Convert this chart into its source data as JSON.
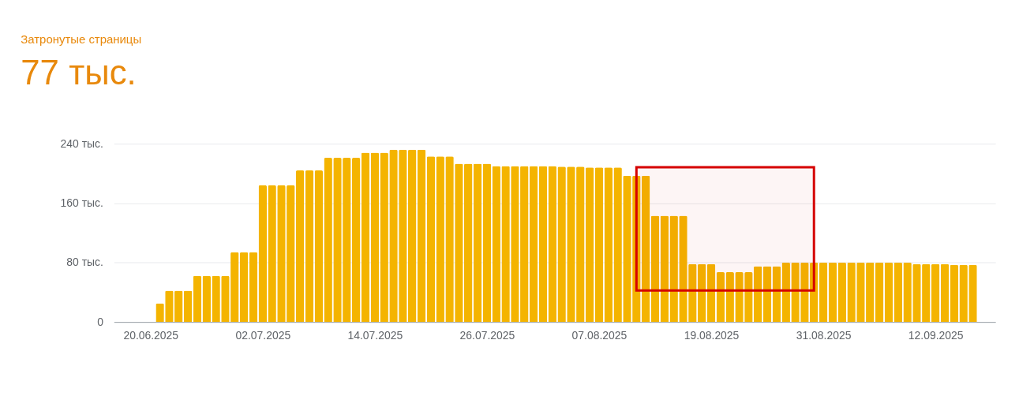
{
  "chart_data": {
    "type": "bar",
    "title": "Затронутые страницы",
    "subtitle": "77 тыс.",
    "x": [
      "2025-06-21",
      "2025-06-22",
      "2025-06-23",
      "2025-06-24",
      "2025-06-25",
      "2025-06-26",
      "2025-06-27",
      "2025-06-28",
      "2025-06-29",
      "2025-06-30",
      "2025-07-01",
      "2025-07-02",
      "2025-07-03",
      "2025-07-04",
      "2025-07-05",
      "2025-07-06",
      "2025-07-07",
      "2025-07-08",
      "2025-07-09",
      "2025-07-10",
      "2025-07-11",
      "2025-07-12",
      "2025-07-13",
      "2025-07-14",
      "2025-07-15",
      "2025-07-16",
      "2025-07-17",
      "2025-07-18",
      "2025-07-19",
      "2025-07-20",
      "2025-07-21",
      "2025-07-22",
      "2025-07-23",
      "2025-07-24",
      "2025-07-25",
      "2025-07-26",
      "2025-07-27",
      "2025-07-28",
      "2025-07-29",
      "2025-07-30",
      "2025-07-31",
      "2025-08-01",
      "2025-08-02",
      "2025-08-03",
      "2025-08-04",
      "2025-08-05",
      "2025-08-06",
      "2025-08-07",
      "2025-08-08",
      "2025-08-09",
      "2025-08-10",
      "2025-08-11",
      "2025-08-12",
      "2025-08-13",
      "2025-08-14",
      "2025-08-15",
      "2025-08-16",
      "2025-08-17",
      "2025-08-18",
      "2025-08-19",
      "2025-08-20",
      "2025-08-21",
      "2025-08-22",
      "2025-08-23",
      "2025-08-24",
      "2025-08-25",
      "2025-08-26",
      "2025-08-27",
      "2025-08-28",
      "2025-08-29",
      "2025-08-30",
      "2025-08-31",
      "2025-09-01",
      "2025-09-02",
      "2025-09-03",
      "2025-09-04",
      "2025-09-05",
      "2025-09-06",
      "2025-09-07",
      "2025-09-08",
      "2025-09-09",
      "2025-09-10",
      "2025-09-11",
      "2025-09-12",
      "2025-09-13",
      "2025-09-14",
      "2025-09-15",
      "2025-09-16"
    ],
    "series": [
      {
        "color": "#f4b400",
        "values": [
          25,
          42,
          42,
          42,
          62,
          62,
          62,
          62,
          94,
          94,
          94,
          184,
          184,
          184,
          184,
          204,
          204,
          204,
          221,
          221,
          221,
          221,
          228,
          228,
          228,
          232,
          232,
          232,
          232,
          223,
          223,
          223,
          213,
          213,
          213,
          213,
          210,
          210,
          210,
          210,
          210,
          210,
          210,
          209,
          209,
          209,
          208,
          208,
          208,
          208,
          197,
          197,
          197,
          143,
          143,
          143,
          143,
          78,
          78,
          78,
          67,
          67,
          67,
          67,
          75,
          75,
          75,
          80,
          80,
          80,
          80,
          80,
          80,
          80,
          80,
          80,
          80,
          80,
          80,
          80,
          80,
          78,
          78,
          78,
          78,
          77,
          77,
          77
        ]
      }
    ],
    "xlim": [
      "2025-06-16T12:00",
      "2025-09-18"
    ],
    "xticks": [
      {
        "value": "2025-06-20",
        "label": "20.06.2025"
      },
      {
        "value": "2025-07-02",
        "label": "02.07.2025"
      },
      {
        "value": "2025-07-14",
        "label": "14.07.2025"
      },
      {
        "value": "2025-07-26",
        "label": "26.07.2025"
      },
      {
        "value": "2025-08-07",
        "label": "07.08.2025"
      },
      {
        "value": "2025-08-19",
        "label": "19.08.2025"
      },
      {
        "value": "2025-08-31",
        "label": "31.08.2025"
      },
      {
        "value": "2025-09-12",
        "label": "12.09.2025"
      }
    ],
    "ylim": [
      0,
      240
    ],
    "yticks": [
      0,
      {
        "value": 80,
        "label": "80 тыс."
      },
      {
        "value": 160,
        "label": "160 тыс."
      },
      {
        "value": 240,
        "label": "240 тыс."
      }
    ],
    "grid": "y",
    "bands": [
      {
        "axis": "x",
        "from": "2025-08-11",
        "to": "2025-08-30",
        "color": "#d50000"
      }
    ]
  }
}
